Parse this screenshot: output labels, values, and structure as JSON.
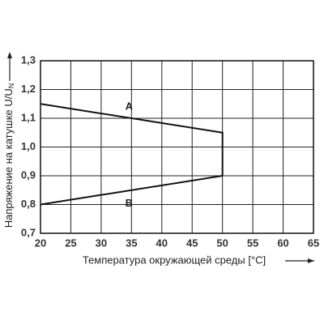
{
  "chart_data": {
    "type": "line",
    "xlabel": "Температура окружающей среды [°C]",
    "ylabel": "Напряжение на катушке U/U",
    "ylabel_subscript": "N",
    "xlim": [
      20,
      65
    ],
    "xticks": [
      20,
      25,
      30,
      35,
      40,
      45,
      50,
      55,
      60,
      65
    ],
    "ylim": [
      0.7,
      1.3
    ],
    "yticks": [
      {
        "value": 0.7,
        "label": "0,7"
      },
      {
        "value": 0.8,
        "label": "0,8"
      },
      {
        "value": 0.9,
        "label": "0,9"
      },
      {
        "value": 1.0,
        "label": "1,0"
      },
      {
        "value": 1.1,
        "label": "1,1"
      },
      {
        "value": 1.2,
        "label": "1,2"
      },
      {
        "value": 1.3,
        "label": "1,3"
      }
    ],
    "grid": true,
    "series": [
      {
        "name": "A",
        "color": "#111111",
        "x": [
          20,
          50,
          50
        ],
        "values": [
          1.15,
          1.05,
          0.9
        ]
      },
      {
        "name": "B",
        "color": "#111111",
        "x": [
          20,
          50
        ],
        "values": [
          0.8,
          0.9
        ]
      }
    ]
  }
}
